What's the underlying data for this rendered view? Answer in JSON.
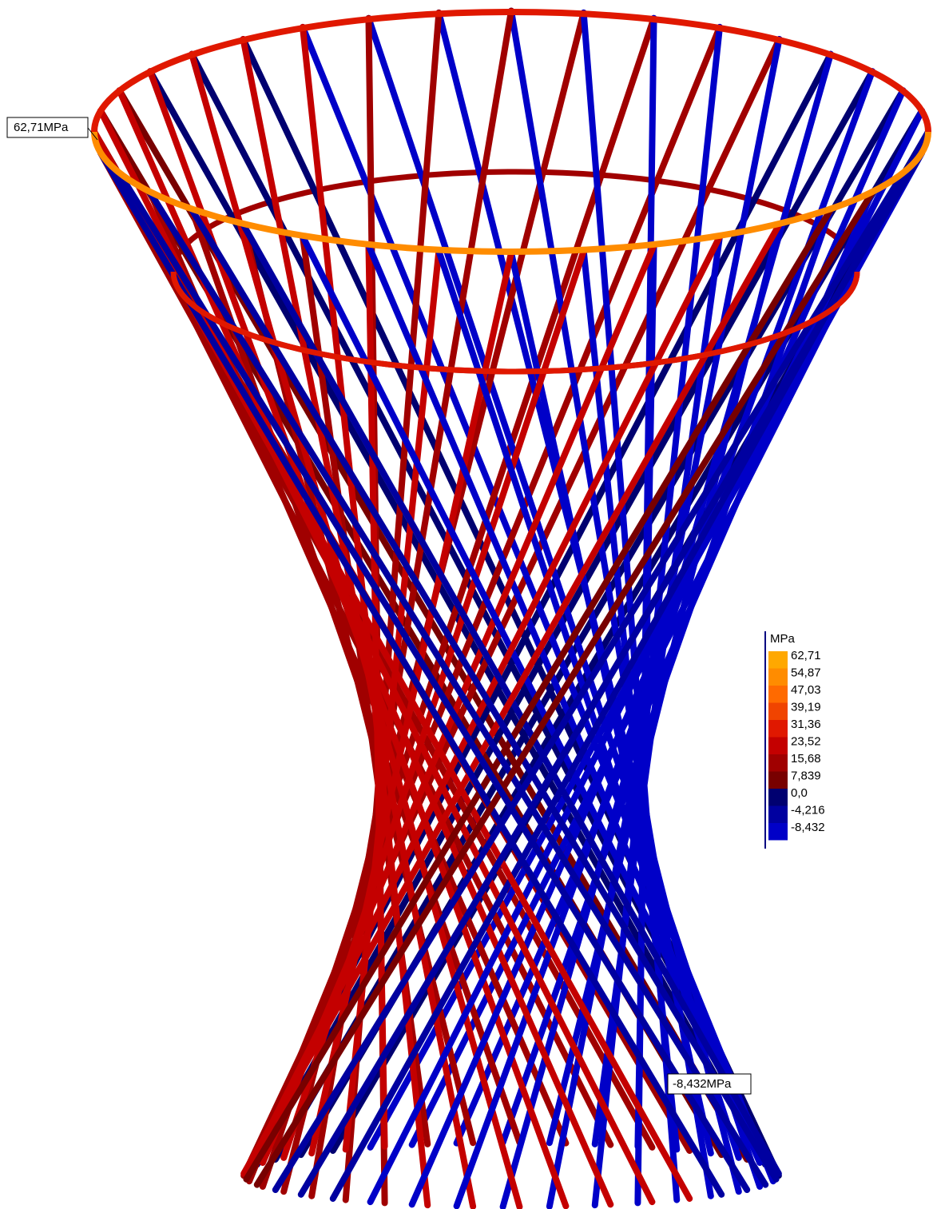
{
  "annotations": {
    "max": "62,71MPa",
    "min": "-8,432MPa"
  },
  "legend": {
    "unit": "MPa",
    "entries": [
      {
        "label": "62,71",
        "color": "#ffa800"
      },
      {
        "label": "54,87",
        "color": "#ff8c00"
      },
      {
        "label": "47,03",
        "color": "#ff6a00"
      },
      {
        "label": "39,19",
        "color": "#f04400"
      },
      {
        "label": "31,36",
        "color": "#e01800"
      },
      {
        "label": "23,52",
        "color": "#c40000"
      },
      {
        "label": "15,68",
        "color": "#a00000"
      },
      {
        "label": "7,839",
        "color": "#780000"
      },
      {
        "label": "0,0",
        "color": "#000070"
      },
      {
        "label": "-4,216",
        "color": "#0000a0"
      },
      {
        "label": "-8,432",
        "color": "#0000c8"
      }
    ]
  }
}
